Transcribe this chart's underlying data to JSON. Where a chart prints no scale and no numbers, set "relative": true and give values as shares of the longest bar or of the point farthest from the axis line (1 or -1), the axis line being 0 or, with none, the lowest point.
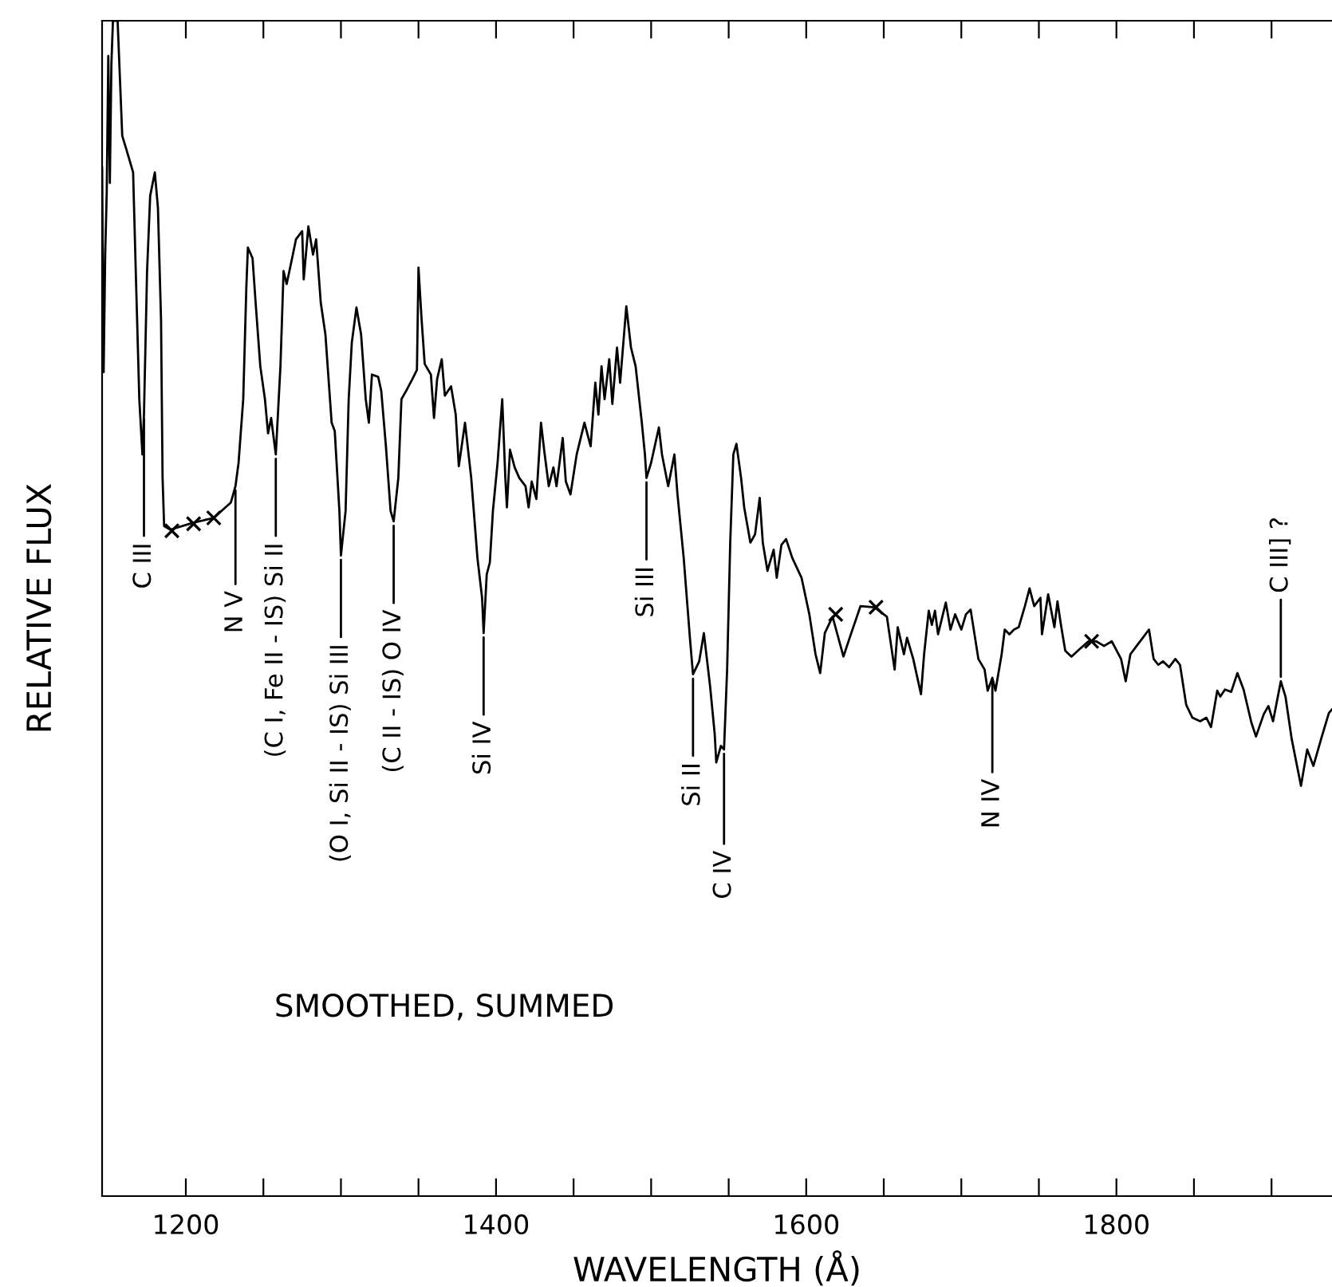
{
  "chart_data": {
    "type": "line",
    "xlabel": "WAVELENGTH (Å)",
    "ylabel": "RELATIVE FLUX",
    "relative": true,
    "xlim": [
      1146,
      1939
    ],
    "xticks": [
      1200,
      {
        "value": 1250,
        "label": null
      },
      {
        "value": 1300,
        "label": null
      },
      {
        "value": 1350,
        "label": null
      },
      1400,
      {
        "value": 1450,
        "label": null
      },
      {
        "value": 1500,
        "label": null
      },
      {
        "value": 1550,
        "label": null
      },
      1600,
      {
        "value": 1650,
        "label": null
      },
      {
        "value": 1700,
        "label": null
      },
      {
        "value": 1750,
        "label": null
      },
      1800,
      {
        "value": 1850,
        "label": null
      },
      {
        "value": 1900,
        "label": null
      }
    ],
    "grid": false,
    "legend": false,
    "series": [
      {
        "color": "#000000",
        "marker": "none",
        "line_style": "solid",
        "x": [
          1146,
          1147,
          1148,
          1149,
          1150,
          1151,
          1152,
          1153,
          1156,
          1159,
          1162,
          1166,
          1168,
          1170,
          1172,
          1173,
          1175,
          1177,
          1180,
          1182,
          1184,
          1185,
          1186,
          1190,
          1205,
          1218,
          1229,
          1232,
          1234,
          1237,
          1239,
          1240,
          1243,
          1245,
          1248,
          1251,
          1253,
          1255,
          1258,
          1261,
          1263,
          1265,
          1269,
          1271,
          1275,
          1276,
          1279,
          1282,
          1284,
          1287,
          1290,
          1294,
          1296,
          1299,
          1300,
          1303,
          1305,
          1307,
          1310,
          1313,
          1316,
          1318,
          1320,
          1324,
          1326,
          1329,
          1332,
          1334,
          1337,
          1339,
          1342,
          1346,
          1349,
          1350,
          1352,
          1354,
          1358,
          1360,
          1362,
          1365,
          1367,
          1371,
          1374,
          1376,
          1380,
          1384,
          1388,
          1391,
          1392,
          1394,
          1396,
          1398,
          1401,
          1404,
          1406,
          1407,
          1409,
          1412,
          1415,
          1419,
          1421,
          1423,
          1426,
          1429,
          1431,
          1434,
          1437,
          1439,
          1443,
          1445,
          1448,
          1452,
          1457,
          1461,
          1464,
          1466,
          1468,
          1470,
          1473,
          1475,
          1478,
          1480,
          1484,
          1487,
          1490,
          1494,
          1496,
          1497,
          1500,
          1505,
          1507,
          1511,
          1515,
          1517,
          1521,
          1525,
          1527,
          1531,
          1534,
          1538,
          1541,
          1542,
          1545,
          1547,
          1549,
          1551,
          1553,
          1555,
          1558,
          1560,
          1564,
          1567,
          1570,
          1572,
          1575,
          1579,
          1581,
          1584,
          1587,
          1591,
          1597,
          1602,
          1606,
          1609,
          1612,
          1617,
          1624,
          1628,
          1635,
          1644,
          1652,
          1657,
          1659,
          1663,
          1665,
          1669,
          1674,
          1676,
          1679,
          1681,
          1683,
          1685,
          1690,
          1693,
          1696,
          1700,
          1703,
          1706,
          1711,
          1715,
          1717,
          1720,
          1722,
          1726,
          1728,
          1731,
          1734,
          1737,
          1741,
          1744,
          1747,
          1751,
          1752,
          1756,
          1760,
          1762,
          1764,
          1767,
          1771,
          1776,
          1782,
          1787,
          1792,
          1797,
          1803,
          1806,
          1809,
          1813,
          1817,
          1821,
          1824,
          1827,
          1830,
          1834,
          1838,
          1841,
          1845,
          1849,
          1854,
          1858,
          1861,
          1865,
          1867,
          1870,
          1874,
          1878,
          1882,
          1887,
          1890,
          1895,
          1898,
          1901,
          1906,
          1909,
          1913,
          1919,
          1923,
          1927,
          1932,
          1937,
          1939
        ],
        "values": [
          0.875,
          0.701,
          0.801,
          0.855,
          0.97,
          0.862,
          0.963,
          1.0,
          1.0,
          0.902,
          0.889,
          0.871,
          0.773,
          0.678,
          0.631,
          0.665,
          0.787,
          0.851,
          0.871,
          0.841,
          0.746,
          0.611,
          0.57,
          0.567,
          0.573,
          0.577,
          0.59,
          0.604,
          0.624,
          0.678,
          0.773,
          0.807,
          0.798,
          0.76,
          0.706,
          0.678,
          0.649,
          0.662,
          0.631,
          0.706,
          0.787,
          0.776,
          0.801,
          0.814,
          0.821,
          0.78,
          0.825,
          0.801,
          0.814,
          0.76,
          0.733,
          0.658,
          0.651,
          0.583,
          0.545,
          0.583,
          0.678,
          0.726,
          0.756,
          0.733,
          0.678,
          0.658,
          0.699,
          0.697,
          0.685,
          0.638,
          0.583,
          0.574,
          0.611,
          0.678,
          0.685,
          0.695,
          0.703,
          0.79,
          0.746,
          0.708,
          0.699,
          0.662,
          0.695,
          0.712,
          0.681,
          0.689,
          0.665,
          0.621,
          0.658,
          0.611,
          0.543,
          0.509,
          0.479,
          0.529,
          0.539,
          0.583,
          0.624,
          0.678,
          0.611,
          0.586,
          0.635,
          0.62,
          0.611,
          0.604,
          0.586,
          0.608,
          0.593,
          0.658,
          0.635,
          0.604,
          0.62,
          0.604,
          0.645,
          0.608,
          0.597,
          0.631,
          0.658,
          0.638,
          0.692,
          0.665,
          0.706,
          0.678,
          0.712,
          0.674,
          0.722,
          0.692,
          0.757,
          0.722,
          0.706,
          0.658,
          0.631,
          0.611,
          0.624,
          0.654,
          0.631,
          0.604,
          0.631,
          0.597,
          0.543,
          0.475,
          0.444,
          0.455,
          0.479,
          0.434,
          0.393,
          0.369,
          0.383,
          0.38,
          0.448,
          0.556,
          0.631,
          0.64,
          0.611,
          0.586,
          0.556,
          0.563,
          0.594,
          0.556,
          0.532,
          0.55,
          0.526,
          0.554,
          0.559,
          0.543,
          0.526,
          0.495,
          0.461,
          0.445,
          0.479,
          0.493,
          0.459,
          0.475,
          0.502,
          0.501,
          0.493,
          0.448,
          0.484,
          0.461,
          0.475,
          0.457,
          0.427,
          0.461,
          0.498,
          0.486,
          0.498,
          0.478,
          0.505,
          0.482,
          0.495,
          0.482,
          0.495,
          0.499,
          0.457,
          0.448,
          0.43,
          0.441,
          0.43,
          0.461,
          0.482,
          0.478,
          0.482,
          0.484,
          0.502,
          0.517,
          0.502,
          0.509,
          0.478,
          0.512,
          0.484,
          0.506,
          0.488,
          0.464,
          0.459,
          0.465,
          0.472,
          0.472,
          0.468,
          0.472,
          0.457,
          0.438,
          0.461,
          0.468,
          0.475,
          0.482,
          0.457,
          0.452,
          0.455,
          0.45,
          0.457,
          0.452,
          0.418,
          0.407,
          0.404,
          0.407,
          0.399,
          0.43,
          0.425,
          0.431,
          0.429,
          0.445,
          0.431,
          0.403,
          0.391,
          0.41,
          0.417,
          0.404,
          0.438,
          0.425,
          0.389,
          0.349,
          0.38,
          0.366,
          0.389,
          0.411,
          0.414
        ]
      },
      {
        "type": "scatter",
        "color": "#000000",
        "marker": "cross",
        "x": [
          1191,
          1205,
          1218,
          1619,
          1645,
          1784
        ],
        "values": [
          0.566,
          0.572,
          0.577,
          0.495,
          0.501,
          0.472
        ]
      }
    ],
    "annotations": [
      {
        "text": "C III",
        "x": 1173,
        "y": 0.665
      },
      {
        "text": "N V",
        "x": 1232,
        "y": 0.604
      },
      {
        "text": "(C I, Fe II - IS) Si II",
        "x": 1258,
        "y": 0.631
      },
      {
        "text": "(O I, Si II - IS) Si III",
        "x": 1300,
        "y": 0.545
      },
      {
        "text": "(C II - IS) O IV",
        "x": 1334,
        "y": 0.574
      },
      {
        "text": "Si IV",
        "x": 1392,
        "y": 0.479
      },
      {
        "text": "Si III",
        "x": 1497,
        "y": 0.611
      },
      {
        "text": "Si II",
        "x": 1527,
        "y": 0.444
      },
      {
        "text": "C IV",
        "x": 1547,
        "y": 0.38
      },
      {
        "text": "N IV",
        "x": 1720,
        "y": 0.441
      },
      {
        "text": "C III] ?",
        "x": 1906,
        "y": 0.438
      },
      "SMOOTHED, SUMMED"
    ]
  }
}
